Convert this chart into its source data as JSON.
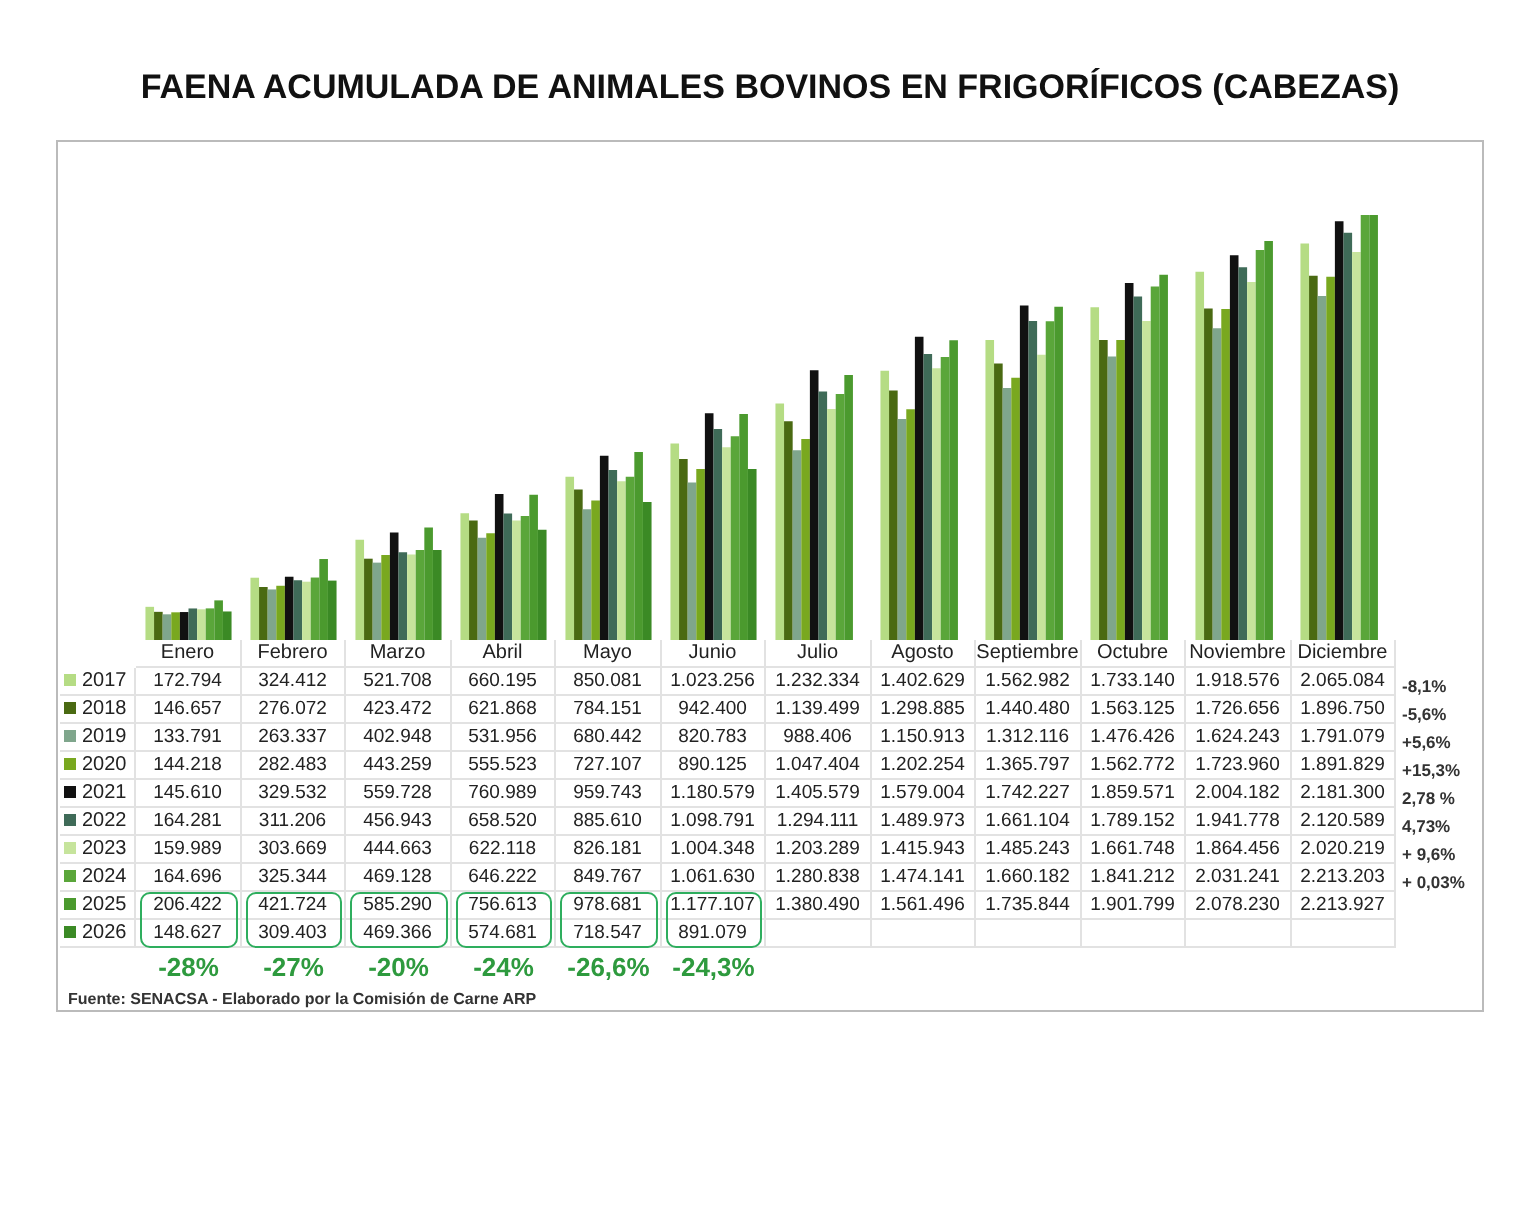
{
  "chart_data": {
    "type": "bar",
    "title": "FAENA ACUMULADA DE ANIMALES BOVINOS EN FRIGORÍFICOS (CABEZAS)",
    "categories": [
      "Enero",
      "Febrero",
      "Marzo",
      "Abril",
      "Mayo",
      "Junio",
      "Julio",
      "Agosto",
      "Septiembre",
      "Octubre",
      "Noviembre",
      "Diciembre"
    ],
    "series": [
      {
        "name": "2017",
        "color": "#b5dc84",
        "values": [
          172794,
          324412,
          521708,
          660195,
          850081,
          1023256,
          1232334,
          1402629,
          1562982,
          1733140,
          1918576,
          2065084
        ],
        "value_labels": [
          "172.794",
          "324.412",
          "521.708",
          "660.195",
          "850.081",
          "1.023.256",
          "1.232.334",
          "1.402.629",
          "1.562.982",
          "1.733.140",
          "1.918.576",
          "2.065.084"
        ]
      },
      {
        "name": "2018",
        "color": "#4a6a12",
        "values": [
          146657,
          276072,
          423472,
          621868,
          784151,
          942400,
          1139499,
          1298885,
          1440480,
          1563125,
          1726656,
          1896750
        ],
        "value_labels": [
          "146.657",
          "276.072",
          "423.472",
          "621.868",
          "784.151",
          "942.400",
          "1.139.499",
          "1.298.885",
          "1.440.480",
          "1.563.125",
          "1.726.656",
          "1.896.750"
        ]
      },
      {
        "name": "2019",
        "color": "#7fa68c",
        "values": [
          133791,
          263337,
          402948,
          531956,
          680442,
          820783,
          988406,
          1150913,
          1312116,
          1476426,
          1624243,
          1791079
        ],
        "value_labels": [
          "133.791",
          "263.337",
          "402.948",
          "531.956",
          "680.442",
          "820.783",
          "988.406",
          "1.150.913",
          "1.312.116",
          "1.476.426",
          "1.624.243",
          "1.791.079"
        ]
      },
      {
        "name": "2020",
        "color": "#79a81f",
        "values": [
          144218,
          282483,
          443259,
          555523,
          727107,
          890125,
          1047404,
          1202254,
          1365797,
          1562772,
          1723960,
          1891829
        ],
        "value_labels": [
          "144.218",
          "282.483",
          "443.259",
          "555.523",
          "727.107",
          "890.125",
          "1.047.404",
          "1.202.254",
          "1.365.797",
          "1.562.772",
          "1.723.960",
          "1.891.829"
        ]
      },
      {
        "name": "2021",
        "color": "#111111",
        "values": [
          145610,
          329532,
          559728,
          760989,
          959743,
          1180579,
          1405579,
          1579004,
          1742227,
          1859571,
          2004182,
          2181300
        ],
        "value_labels": [
          "145.610",
          "329.532",
          "559.728",
          "760.989",
          "959.743",
          "1.180.579",
          "1.405.579",
          "1.579.004",
          "1.742.227",
          "1.859.571",
          "2.004.182",
          "2.181.300"
        ]
      },
      {
        "name": "2022",
        "color": "#3f6b58",
        "values": [
          164281,
          311206,
          456943,
          658520,
          885610,
          1098791,
          1294111,
          1489973,
          1661104,
          1789152,
          1941778,
          2120589
        ],
        "value_labels": [
          "164.281",
          "311.206",
          "456.943",
          "658.520",
          "885.610",
          "1.098.791",
          "1.294.111",
          "1.489.973",
          "1.661.104",
          "1.789.152",
          "1.941.778",
          "2.120.589"
        ]
      },
      {
        "name": "2023",
        "color": "#c6e49c",
        "values": [
          159989,
          303669,
          444663,
          622118,
          826181,
          1004348,
          1203289,
          1415943,
          1485243,
          1661748,
          1864456,
          2020219
        ],
        "value_labels": [
          "159.989",
          "303.669",
          "444.663",
          "622.118",
          "826.181",
          "1.004.348",
          "1.203.289",
          "1.415.943",
          "1.485.243",
          "1.661.748",
          "1.864.456",
          "2.020.219"
        ]
      },
      {
        "name": "2024",
        "color": "#5aa63a",
        "values": [
          164696,
          325344,
          469128,
          646222,
          849767,
          1061630,
          1280838,
          1474141,
          1660182,
          1841212,
          2031241,
          2213203
        ],
        "value_labels": [
          "164.696",
          "325.344",
          "469.128",
          "646.222",
          "849.767",
          "1.061.630",
          "1.280.838",
          "1.474.141",
          "1.660.182",
          "1.841.212",
          "2.031.241",
          "2.213.203"
        ]
      },
      {
        "name": "2025",
        "color": "#4b9a2e",
        "values": [
          206422,
          421724,
          585290,
          756613,
          978681,
          1177107,
          1380490,
          1561496,
          1735844,
          1901799,
          2078230,
          2213927
        ],
        "value_labels": [
          "206.422",
          "421.724",
          "585.290",
          "756.613",
          "978.681",
          "1.177.107",
          "1.380.490",
          "1.561.496",
          "1.735.844",
          "1.901.799",
          "2.078.230",
          "2.213.927"
        ]
      },
      {
        "name": "2026",
        "color": "#3b8a25",
        "values": [
          148627,
          309403,
          469366,
          574681,
          718547,
          891079,
          null,
          null,
          null,
          null,
          null,
          null
        ],
        "value_labels": [
          "148.627",
          "309.403",
          "469.366",
          "574.681",
          "718.547",
          "891.079",
          null,
          null,
          null,
          null,
          null,
          null
        ]
      }
    ],
    "annotations": [
      "-28%",
      "-27%",
      "-20%",
      "-24%",
      "-26,6%",
      "-24,3%",
      "-8,1%",
      "-5,6%",
      "+5,6%",
      "+15,3%",
      "2,78 %",
      "4,73%",
      "+ 9,6%",
      "+ 0,03%",
      "Fuente: SENACSA - Elaborado por la Comisión de Carne ARP"
    ],
    "legend": "bottom"
  }
}
